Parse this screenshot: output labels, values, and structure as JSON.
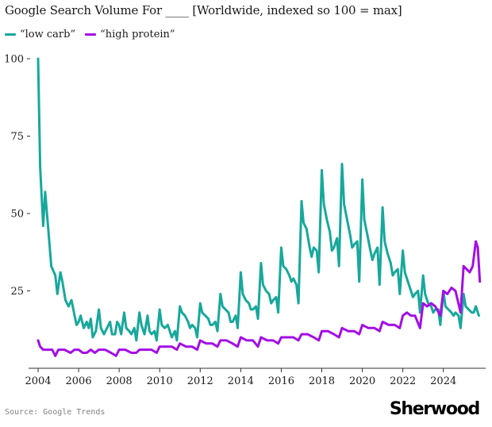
{
  "title": "Google Search Volume For ____ [Worldwide, indexed so 100 = max]",
  "legend": {
    "low_carb": "“low carb”",
    "high_protein": "“high protein”"
  },
  "colors": {
    "low_carb": "#17a89c",
    "high_protein": "#a40ee6",
    "axis": "#333333"
  },
  "source": "Source: Google Trends",
  "brand": "Sherwood",
  "chart_data": {
    "type": "line",
    "title": "Google Search Volume For ____ [Worldwide, indexed so 100 = max]",
    "xlabel": "",
    "ylabel": "",
    "xlim": [
      2004,
      2026.4
    ],
    "ylim": [
      0,
      100
    ],
    "x_ticks": [
      2004,
      2006,
      2008,
      2010,
      2012,
      2014,
      2016,
      2018,
      2020,
      2022,
      2024
    ],
    "x_tick_labels": [
      "2004",
      "2006",
      "2008",
      "2010",
      "2012",
      "2014",
      "2016",
      "2018",
      "2020",
      "2022",
      "2024"
    ],
    "y_ticks": [
      25,
      50,
      75,
      100
    ],
    "y_tick_labels": [
      "25",
      "50",
      "75",
      "100"
    ],
    "grid": false,
    "legend_position": "top-left",
    "series": [
      {
        "name": "“low carb”",
        "points": [
          [
            2004.0,
            100
          ],
          [
            2004.1,
            65
          ],
          [
            2004.25,
            46
          ],
          [
            2004.35,
            57
          ],
          [
            2004.5,
            45
          ],
          [
            2004.65,
            33
          ],
          [
            2004.85,
            30
          ],
          [
            2004.95,
            24
          ],
          [
            2005.1,
            31
          ],
          [
            2005.2,
            28
          ],
          [
            2005.35,
            22
          ],
          [
            2005.5,
            20
          ],
          [
            2005.65,
            22
          ],
          [
            2005.8,
            17
          ],
          [
            2005.9,
            14
          ],
          [
            2006.0,
            15
          ],
          [
            2006.1,
            17
          ],
          [
            2006.25,
            13
          ],
          [
            2006.4,
            15
          ],
          [
            2006.5,
            13
          ],
          [
            2006.6,
            16
          ],
          [
            2006.7,
            10
          ],
          [
            2006.85,
            12
          ],
          [
            2007.0,
            19
          ],
          [
            2007.1,
            13
          ],
          [
            2007.25,
            11
          ],
          [
            2007.4,
            13
          ],
          [
            2007.55,
            15
          ],
          [
            2007.65,
            11
          ],
          [
            2007.8,
            11
          ],
          [
            2007.9,
            15
          ],
          [
            2008.0,
            14
          ],
          [
            2008.1,
            11
          ],
          [
            2008.25,
            18
          ],
          [
            2008.35,
            13
          ],
          [
            2008.5,
            12
          ],
          [
            2008.6,
            11
          ],
          [
            2008.75,
            13
          ],
          [
            2008.85,
            9
          ],
          [
            2009.0,
            18
          ],
          [
            2009.1,
            14
          ],
          [
            2009.25,
            11
          ],
          [
            2009.4,
            17
          ],
          [
            2009.5,
            12
          ],
          [
            2009.6,
            11
          ],
          [
            2009.75,
            12
          ],
          [
            2009.85,
            9
          ],
          [
            2010.0,
            19
          ],
          [
            2010.1,
            14
          ],
          [
            2010.25,
            13
          ],
          [
            2010.4,
            14
          ],
          [
            2010.5,
            12
          ],
          [
            2010.6,
            10
          ],
          [
            2010.75,
            12
          ],
          [
            2010.85,
            9
          ],
          [
            2011.0,
            20
          ],
          [
            2011.1,
            18
          ],
          [
            2011.25,
            17
          ],
          [
            2011.4,
            15
          ],
          [
            2011.5,
            13
          ],
          [
            2011.6,
            14
          ],
          [
            2011.75,
            13
          ],
          [
            2011.85,
            10
          ],
          [
            2012.0,
            21
          ],
          [
            2012.1,
            18
          ],
          [
            2012.25,
            17
          ],
          [
            2012.4,
            16
          ],
          [
            2012.5,
            14
          ],
          [
            2012.6,
            14
          ],
          [
            2012.75,
            15
          ],
          [
            2012.85,
            12
          ],
          [
            2013.0,
            24
          ],
          [
            2013.1,
            20
          ],
          [
            2013.25,
            19
          ],
          [
            2013.4,
            18
          ],
          [
            2013.5,
            15
          ],
          [
            2013.6,
            15
          ],
          [
            2013.75,
            17
          ],
          [
            2013.85,
            13
          ],
          [
            2014.0,
            31
          ],
          [
            2014.1,
            24
          ],
          [
            2014.25,
            22
          ],
          [
            2014.4,
            21
          ],
          [
            2014.5,
            19
          ],
          [
            2014.6,
            19
          ],
          [
            2014.75,
            20
          ],
          [
            2014.85,
            16
          ],
          [
            2015.0,
            34
          ],
          [
            2015.1,
            27
          ],
          [
            2015.25,
            25
          ],
          [
            2015.4,
            24
          ],
          [
            2015.5,
            21
          ],
          [
            2015.6,
            22
          ],
          [
            2015.75,
            23
          ],
          [
            2015.85,
            18
          ],
          [
            2016.0,
            39
          ],
          [
            2016.1,
            33
          ],
          [
            2016.25,
            32
          ],
          [
            2016.4,
            30
          ],
          [
            2016.5,
            28
          ],
          [
            2016.6,
            29
          ],
          [
            2016.75,
            27
          ],
          [
            2016.85,
            21
          ],
          [
            2017.0,
            54
          ],
          [
            2017.1,
            47
          ],
          [
            2017.25,
            45
          ],
          [
            2017.4,
            39
          ],
          [
            2017.5,
            36
          ],
          [
            2017.6,
            39
          ],
          [
            2017.75,
            38
          ],
          [
            2017.85,
            31
          ],
          [
            2018.0,
            64
          ],
          [
            2018.1,
            53
          ],
          [
            2018.25,
            48
          ],
          [
            2018.4,
            44
          ],
          [
            2018.5,
            38
          ],
          [
            2018.6,
            39
          ],
          [
            2018.75,
            42
          ],
          [
            2018.85,
            33
          ],
          [
            2019.0,
            66
          ],
          [
            2019.1,
            53
          ],
          [
            2019.25,
            48
          ],
          [
            2019.4,
            43
          ],
          [
            2019.5,
            39
          ],
          [
            2019.6,
            40
          ],
          [
            2019.75,
            41
          ],
          [
            2019.85,
            28
          ],
          [
            2020.0,
            61
          ],
          [
            2020.1,
            48
          ],
          [
            2020.25,
            43
          ],
          [
            2020.4,
            38
          ],
          [
            2020.5,
            35
          ],
          [
            2020.6,
            37
          ],
          [
            2020.75,
            39
          ],
          [
            2020.85,
            27
          ],
          [
            2021.0,
            52
          ],
          [
            2021.1,
            41
          ],
          [
            2021.25,
            37
          ],
          [
            2021.4,
            34
          ],
          [
            2021.5,
            30
          ],
          [
            2021.6,
            31
          ],
          [
            2021.75,
            32
          ],
          [
            2021.85,
            24
          ],
          [
            2022.0,
            38
          ],
          [
            2022.1,
            31
          ],
          [
            2022.25,
            28
          ],
          [
            2022.4,
            25
          ],
          [
            2022.5,
            23
          ],
          [
            2022.6,
            24
          ],
          [
            2022.75,
            25
          ],
          [
            2022.85,
            18
          ],
          [
            2023.0,
            30
          ],
          [
            2023.1,
            24
          ],
          [
            2023.25,
            21
          ],
          [
            2023.4,
            20
          ],
          [
            2023.5,
            18
          ],
          [
            2023.6,
            19
          ],
          [
            2023.75,
            19
          ],
          [
            2023.85,
            14
          ],
          [
            2024.0,
            25
          ],
          [
            2024.1,
            20
          ],
          [
            2024.25,
            19
          ],
          [
            2024.4,
            18
          ],
          [
            2024.5,
            17
          ],
          [
            2024.6,
            18
          ],
          [
            2024.75,
            17
          ],
          [
            2024.85,
            13
          ],
          [
            2025.0,
            24
          ],
          [
            2025.1,
            20
          ],
          [
            2025.25,
            19
          ],
          [
            2025.4,
            18
          ],
          [
            2025.5,
            18
          ],
          [
            2025.6,
            20
          ],
          [
            2025.75,
            17
          ]
        ]
      },
      {
        "name": "“high protein”",
        "points": [
          [
            2004.0,
            9
          ],
          [
            2004.1,
            7
          ],
          [
            2004.25,
            6
          ],
          [
            2004.5,
            6
          ],
          [
            2004.7,
            6
          ],
          [
            2004.85,
            4
          ],
          [
            2005.0,
            6
          ],
          [
            2005.3,
            6
          ],
          [
            2005.6,
            5
          ],
          [
            2005.8,
            6
          ],
          [
            2006.0,
            6
          ],
          [
            2006.2,
            5
          ],
          [
            2006.4,
            5
          ],
          [
            2006.6,
            6
          ],
          [
            2006.8,
            5
          ],
          [
            2007.0,
            6
          ],
          [
            2007.3,
            6
          ],
          [
            2007.6,
            5
          ],
          [
            2007.85,
            4
          ],
          [
            2008.0,
            6
          ],
          [
            2008.3,
            6
          ],
          [
            2008.6,
            5
          ],
          [
            2008.85,
            5
          ],
          [
            2009.0,
            6
          ],
          [
            2009.3,
            6
          ],
          [
            2009.6,
            6
          ],
          [
            2009.85,
            5
          ],
          [
            2010.0,
            7
          ],
          [
            2010.3,
            7
          ],
          [
            2010.6,
            7
          ],
          [
            2010.85,
            6
          ],
          [
            2011.0,
            8
          ],
          [
            2011.3,
            7
          ],
          [
            2011.6,
            7
          ],
          [
            2011.85,
            6
          ],
          [
            2012.0,
            9
          ],
          [
            2012.3,
            8
          ],
          [
            2012.6,
            8
          ],
          [
            2012.85,
            7
          ],
          [
            2013.0,
            9
          ],
          [
            2013.3,
            9
          ],
          [
            2013.6,
            8
          ],
          [
            2013.85,
            7
          ],
          [
            2014.0,
            10
          ],
          [
            2014.3,
            9
          ],
          [
            2014.6,
            9
          ],
          [
            2014.85,
            7
          ],
          [
            2015.0,
            10
          ],
          [
            2015.3,
            9
          ],
          [
            2015.6,
            9
          ],
          [
            2015.85,
            8
          ],
          [
            2016.0,
            10
          ],
          [
            2016.3,
            10
          ],
          [
            2016.6,
            10
          ],
          [
            2016.85,
            9
          ],
          [
            2017.0,
            11
          ],
          [
            2017.3,
            11
          ],
          [
            2017.6,
            10
          ],
          [
            2017.85,
            9
          ],
          [
            2018.0,
            12
          ],
          [
            2018.3,
            12
          ],
          [
            2018.6,
            11
          ],
          [
            2018.85,
            10
          ],
          [
            2019.0,
            13
          ],
          [
            2019.3,
            12
          ],
          [
            2019.6,
            12
          ],
          [
            2019.85,
            11
          ],
          [
            2020.0,
            14
          ],
          [
            2020.3,
            13
          ],
          [
            2020.6,
            13
          ],
          [
            2020.85,
            12
          ],
          [
            2021.0,
            15
          ],
          [
            2021.3,
            14
          ],
          [
            2021.6,
            14
          ],
          [
            2021.85,
            13
          ],
          [
            2022.0,
            17
          ],
          [
            2022.2,
            18
          ],
          [
            2022.4,
            17
          ],
          [
            2022.6,
            17
          ],
          [
            2022.85,
            13
          ],
          [
            2023.0,
            21
          ],
          [
            2023.2,
            20
          ],
          [
            2023.4,
            21
          ],
          [
            2023.6,
            20
          ],
          [
            2023.85,
            17
          ],
          [
            2024.0,
            25
          ],
          [
            2024.2,
            24
          ],
          [
            2024.4,
            26
          ],
          [
            2024.6,
            25
          ],
          [
            2024.85,
            18
          ],
          [
            2025.0,
            33
          ],
          [
            2025.15,
            32
          ],
          [
            2025.3,
            31
          ],
          [
            2025.45,
            33
          ],
          [
            2025.6,
            41
          ],
          [
            2025.7,
            39
          ],
          [
            2025.8,
            28
          ]
        ]
      }
    ]
  }
}
